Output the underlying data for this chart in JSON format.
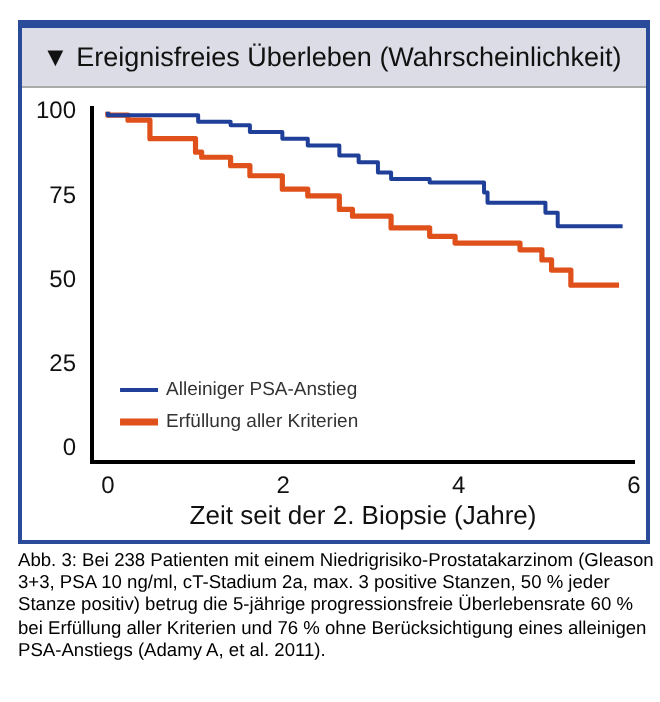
{
  "chart_data": {
    "type": "step",
    "title": "▼ Ereignisfreies Überleben (Wahrscheinlichkeit)",
    "xlabel": "Zeit seit der 2. Biopsie (Jahre)",
    "xlim": [
      -0.18,
      6
    ],
    "xticks": [
      0,
      2,
      4,
      6
    ],
    "ylim": [
      -4,
      101
    ],
    "yticks": [
      0,
      25,
      50,
      75,
      100
    ],
    "grid": false,
    "legend": "bottom left",
    "series": [
      {
        "name": "Alleiniger PSA-Anstieg",
        "color": "#1f3f99",
        "x": [
          0,
          1.03,
          1.4,
          1.62,
          1.99,
          2.28,
          2.64,
          2.86,
          3.08,
          3.23,
          3.67,
          4.29,
          4.33,
          4.99,
          5.13,
          5.28,
          5.87
        ],
        "values": [
          100,
          99,
          97,
          96,
          94,
          92,
          90,
          87,
          85,
          82,
          80,
          79,
          76,
          73,
          70,
          66,
          66
        ]
      },
      {
        "name": "Erfüllung aller Kriterien",
        "color": "#e0501a",
        "x": [
          0,
          0.23,
          0.48,
          1.0,
          1.07,
          1.4,
          1.62,
          1.99,
          2.28,
          2.64,
          2.79,
          3.23,
          3.67,
          3.96,
          4.7,
          4.95,
          5.06,
          5.28,
          5.5,
          5.83
        ],
        "values": [
          100,
          99,
          97.5,
          92,
          88,
          86.5,
          84,
          81,
          77,
          75,
          71,
          69,
          65.5,
          63,
          61,
          59,
          56,
          53,
          48.5,
          48.5
        ]
      }
    ],
    "annotations": [
      "Abb. 3: Bei 238 Patienten mit einem Niedrigrisiko-Prostatakarzinom (Gleason 3+3, PSA 10 ng/ml, cT-Stadium 2a, max. 3 positive Stanzen, 50 % jeder Stanze positiv) betrug die 5-jährige progressionsfreie Überlebensrate 60 % bei Erfüllung aller Kriterien und 76 % ohne Berücksichtigung eines alleinigen PSA-Anstiegs (Adamy A, et al. 2011)."
    ]
  }
}
